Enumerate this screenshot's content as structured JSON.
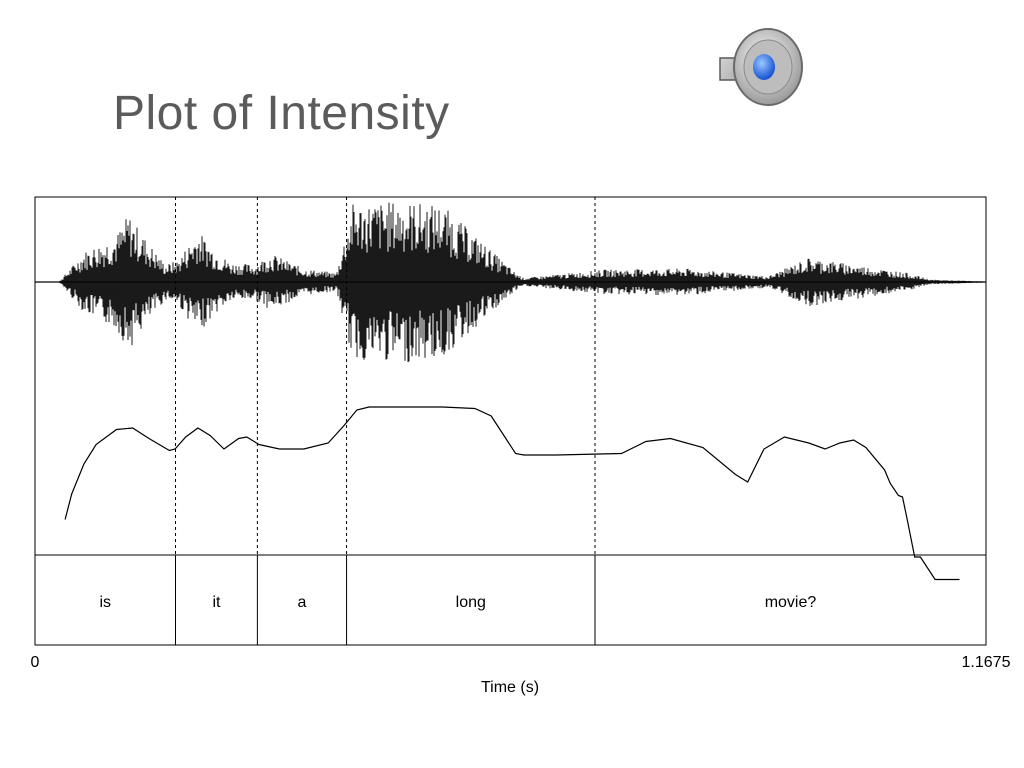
{
  "slide": {
    "title": "Plot of Intensity",
    "audio_icon": "speaker-volume-icon"
  },
  "chart_data": {
    "type": "line",
    "panels": [
      "waveform",
      "intensity-contour",
      "word-tier"
    ],
    "xlabel": "Time (s)",
    "xlim": [
      0,
      1.1675
    ],
    "x_tick_labels": [
      "0",
      "1.1675"
    ],
    "grid": false,
    "word_boundaries_s": [
      0.1725,
      0.273,
      0.3825,
      0.6875
    ],
    "words": [
      {
        "label": "is",
        "start": 0,
        "end": 0.1725
      },
      {
        "label": "it",
        "start": 0.1725,
        "end": 0.273
      },
      {
        "label": "a",
        "start": 0.273,
        "end": 0.3825
      },
      {
        "label": "long",
        "start": 0.3825,
        "end": 0.6875
      },
      {
        "label": "movie?",
        "start": 0.6875,
        "end": 1.1675
      }
    ],
    "intensity": {
      "x": [
        0.037,
        0.045,
        0.06,
        0.075,
        0.1,
        0.12,
        0.14,
        0.165,
        0.172,
        0.185,
        0.2,
        0.215,
        0.232,
        0.25,
        0.26,
        0.275,
        0.3,
        0.33,
        0.36,
        0.38,
        0.395,
        0.41,
        0.43,
        0.5,
        0.54,
        0.56,
        0.59,
        0.6,
        0.64,
        0.72,
        0.75,
        0.78,
        0.82,
        0.86,
        0.875,
        0.895,
        0.92,
        0.95,
        0.97,
        0.988,
        1.005,
        1.02,
        1.043,
        1.05,
        1.06,
        1.065,
        1.07,
        1.08,
        1.087,
        1.105,
        1.12,
        1.135,
        1.13
      ],
      "y": [
        0.25,
        0.42,
        0.62,
        0.75,
        0.85,
        0.86,
        0.79,
        0.71,
        0.72,
        0.8,
        0.86,
        0.81,
        0.72,
        0.79,
        0.8,
        0.75,
        0.72,
        0.72,
        0.76,
        0.88,
        0.98,
        1.0,
        1.0,
        1.0,
        0.99,
        0.94,
        0.69,
        0.68,
        0.68,
        0.69,
        0.77,
        0.79,
        0.73,
        0.55,
        0.5,
        0.72,
        0.8,
        0.76,
        0.72,
        0.76,
        0.78,
        0.73,
        0.58,
        0.49,
        0.41,
        0.4,
        0.27,
        0.0,
        0.0,
        -0.15,
        -0.15,
        -0.15,
        -0.15
      ]
    },
    "waveform_envelope": {
      "x": [
        0.03,
        0.06,
        0.1,
        0.115,
        0.13,
        0.16,
        0.175,
        0.2,
        0.22,
        0.24,
        0.27,
        0.29,
        0.33,
        0.37,
        0.39,
        0.45,
        0.5,
        0.59,
        0.6,
        0.7,
        0.8,
        0.9,
        0.95,
        1.07,
        1.1,
        1.1675
      ],
      "amplitude": [
        0.0,
        0.35,
        0.55,
        0.8,
        0.58,
        0.2,
        0.25,
        0.6,
        0.38,
        0.22,
        0.2,
        0.33,
        0.15,
        0.1,
        0.92,
        0.95,
        0.9,
        0.1,
        0.04,
        0.14,
        0.15,
        0.06,
        0.28,
        0.1,
        0.02,
        0.0
      ]
    }
  }
}
